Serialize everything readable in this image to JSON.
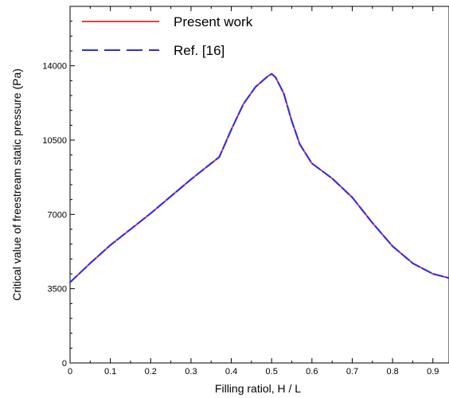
{
  "chart_data": {
    "type": "line",
    "title": "",
    "xlabel": "Filling ratiol, H / L",
    "ylabel": "Critical value of freestream static pressure (Pa)",
    "xlim": [
      0,
      0.94
    ],
    "ylim": [
      0,
      16800
    ],
    "x_ticks": [
      0,
      0.1,
      0.2,
      0.3,
      0.4,
      0.5,
      0.6,
      0.7,
      0.8,
      0.9
    ],
    "x_tick_labels": [
      "0",
      "0.1",
      "0.2",
      "0.3",
      "0.4",
      "0.5",
      "0.6",
      "0.7",
      "0.8",
      "0.9"
    ],
    "y_ticks": [
      0,
      3500,
      7000,
      10500,
      14000
    ],
    "y_tick_labels": [
      "0",
      "3500",
      "7000",
      "10500",
      "14000"
    ],
    "grid": false,
    "legend_position": "top-left",
    "series": [
      {
        "name": "Present work",
        "color": "#e8413a",
        "dash": "solid",
        "x": [
          0,
          0.05,
          0.1,
          0.15,
          0.2,
          0.25,
          0.3,
          0.35,
          0.37,
          0.4,
          0.43,
          0.46,
          0.49,
          0.5,
          0.51,
          0.53,
          0.55,
          0.57,
          0.6,
          0.65,
          0.7,
          0.75,
          0.8,
          0.85,
          0.9,
          0.94
        ],
        "y": [
          3800,
          4700,
          5550,
          6300,
          7050,
          7850,
          8650,
          9400,
          9700,
          11000,
          12200,
          13000,
          13500,
          13620,
          13450,
          12700,
          11400,
          10300,
          9400,
          8700,
          7800,
          6600,
          5500,
          4700,
          4200,
          4000
        ]
      },
      {
        "name": "Ref. [16]",
        "color": "#2b2bf0",
        "dash": "dashed",
        "x": [
          0,
          0.05,
          0.1,
          0.15,
          0.2,
          0.25,
          0.3,
          0.35,
          0.37,
          0.4,
          0.43,
          0.46,
          0.49,
          0.5,
          0.51,
          0.53,
          0.55,
          0.57,
          0.6,
          0.65,
          0.7,
          0.75,
          0.8,
          0.85,
          0.9,
          0.94
        ],
        "y": [
          3800,
          4700,
          5550,
          6300,
          7050,
          7850,
          8650,
          9400,
          9700,
          11000,
          12200,
          13000,
          13500,
          13620,
          13450,
          12700,
          11400,
          10300,
          9400,
          8700,
          7800,
          6600,
          5500,
          4700,
          4200,
          4000
        ]
      }
    ]
  }
}
